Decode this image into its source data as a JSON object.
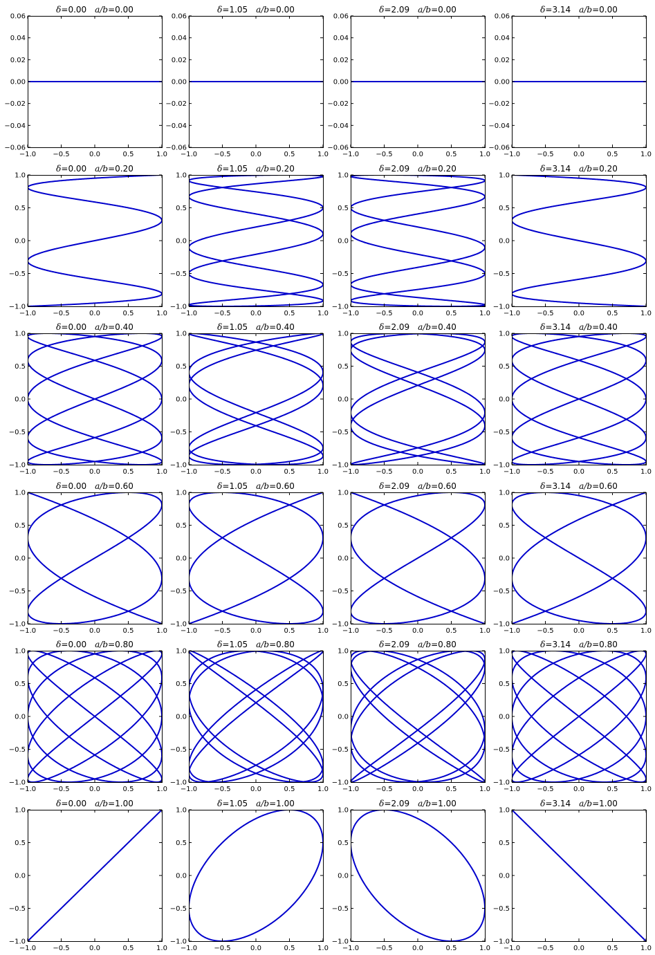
{
  "chart_data": {
    "type": "line",
    "description_free": true,
    "curve_color": "#0000cc",
    "rows": [
      {
        "ratio": 0.0,
        "ratio_label": "0.00",
        "ylim": [
          -0.06,
          0.06
        ],
        "yticks": [
          "0.06",
          "0.04",
          "0.02",
          "0.00",
          "−0.02",
          "−0.04",
          "−0.06"
        ],
        "ytick_values": [
          0.06,
          0.04,
          0.02,
          0.0,
          -0.02,
          -0.04,
          -0.06
        ]
      },
      {
        "ratio": 0.2,
        "ratio_label": "0.20",
        "ylim": [
          -1,
          1
        ],
        "yticks": [
          "1.0",
          "0.5",
          "0.0",
          "−0.5",
          "−1.0"
        ],
        "ytick_values": [
          1,
          0.5,
          0,
          -0.5,
          -1
        ]
      },
      {
        "ratio": 0.4,
        "ratio_label": "0.40",
        "ylim": [
          -1,
          1
        ],
        "yticks": [
          "1.0",
          "0.5",
          "0.0",
          "−0.5",
          "−1.0"
        ],
        "ytick_values": [
          1,
          0.5,
          0,
          -0.5,
          -1
        ]
      },
      {
        "ratio": 0.6,
        "ratio_label": "0.60",
        "ylim": [
          -1,
          1
        ],
        "yticks": [
          "1.0",
          "0.5",
          "0.0",
          "−0.5",
          "−1.0"
        ],
        "ytick_values": [
          1,
          0.5,
          0,
          -0.5,
          -1
        ]
      },
      {
        "ratio": 0.8,
        "ratio_label": "0.80",
        "ylim": [
          -1,
          1
        ],
        "yticks": [
          "1.0",
          "0.5",
          "0.0",
          "−0.5",
          "−1.0"
        ],
        "ytick_values": [
          1,
          0.5,
          0,
          -0.5,
          -1
        ]
      },
      {
        "ratio": 1.0,
        "ratio_label": "1.00",
        "ylim": [
          -1,
          1
        ],
        "yticks": [
          "1.0",
          "0.5",
          "0.0",
          "−0.5",
          "−1.0"
        ],
        "ytick_values": [
          1,
          0.5,
          0,
          -0.5,
          -1
        ]
      }
    ],
    "columns": [
      {
        "delta": 0.0,
        "delta_label": "0.00"
      },
      {
        "delta": 1.0472,
        "delta_label": "1.05"
      },
      {
        "delta": 2.0944,
        "delta_label": "2.09"
      },
      {
        "delta": 3.1416,
        "delta_label": "3.14"
      }
    ],
    "xlim": [
      -1,
      1
    ],
    "xticks": [
      "−1.0",
      "−0.5",
      "0.0",
      "0.5",
      "1.0"
    ],
    "xtick_values": [
      -1,
      -0.5,
      0,
      0.5,
      1
    ],
    "title_delta_symbol": "δ",
    "title_ratio_symbol": "a/b",
    "title_equals": "=",
    "param_samples": 2400
  }
}
